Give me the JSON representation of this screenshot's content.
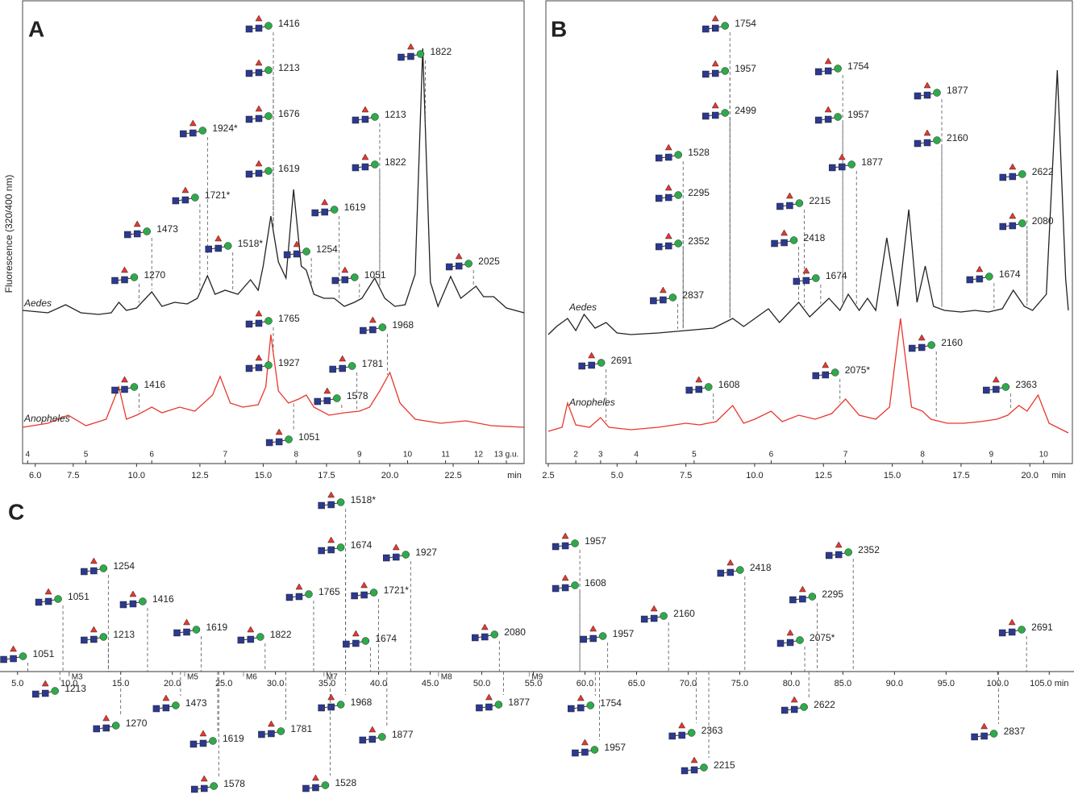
{
  "chart_data": [
    {
      "type": "line",
      "panel": "A",
      "ylabel": "Fluorescence (320/400 nm)",
      "xlabel": "min",
      "xlim": [
        5.5,
        25.3
      ],
      "ylim": [
        0,
        540
      ],
      "xticks": [
        {
          "value": 6,
          "label": "6.0"
        },
        7.5,
        {
          "value": 10,
          "label": "10.0"
        },
        12.5,
        {
          "value": 15,
          "label": "15.0"
        },
        17.5,
        {
          "value": 20,
          "label": "20.0"
        },
        22.5
      ],
      "gu_ticks": [
        {
          "value": 5.7,
          "label": "4"
        },
        {
          "value": 8.0,
          "label": "5"
        },
        {
          "value": 10.6,
          "label": "6"
        },
        {
          "value": 13.5,
          "label": "7"
        },
        {
          "value": 16.3,
          "label": "8"
        },
        {
          "value": 18.8,
          "label": "9"
        },
        {
          "value": 20.7,
          "label": "10"
        },
        {
          "value": 22.2,
          "label": "11"
        },
        {
          "value": 23.5,
          "label": "12"
        },
        {
          "value": 24.6,
          "label": "13 g.u."
        }
      ],
      "series": [
        {
          "name": "Aedes",
          "color": "#222222",
          "x": [
            5.5,
            6.5,
            7.2,
            7.8,
            8.5,
            9.0,
            9.3,
            9.6,
            10.0,
            10.6,
            11.0,
            11.5,
            12.0,
            12.4,
            12.8,
            13.1,
            13.5,
            14.0,
            14.5,
            14.8,
            15.0,
            15.3,
            15.6,
            15.9,
            16.2,
            16.5,
            16.7,
            17.0,
            17.4,
            17.8,
            18.2,
            18.6,
            18.9,
            19.4,
            19.8,
            20.2,
            20.6,
            21.0,
            21.3,
            21.6,
            21.9,
            22.4,
            22.8,
            23.4,
            23.7,
            24.1,
            24.6,
            25.3
          ],
          "values": [
            175,
            172,
            182,
            172,
            170,
            172,
            185,
            175,
            178,
            198,
            180,
            185,
            183,
            190,
            218,
            195,
            200,
            195,
            213,
            200,
            230,
            292,
            235,
            215,
            325,
            230,
            225,
            195,
            190,
            190,
            180,
            185,
            190,
            215,
            190,
            180,
            182,
            220,
            500,
            210,
            180,
            217,
            190,
            205,
            192,
            192,
            178,
            172
          ]
        },
        {
          "name": "Anopheles",
          "color": "#e8372c",
          "x": [
            5.5,
            6.5,
            7.3,
            8.0,
            8.8,
            9.3,
            9.6,
            10.0,
            10.6,
            11.0,
            11.7,
            12.3,
            13.0,
            13.3,
            13.7,
            14.2,
            14.8,
            15.1,
            15.3,
            15.6,
            16.0,
            16.4,
            16.7,
            17.0,
            17.6,
            18.2,
            18.8,
            19.2,
            19.6,
            20.0,
            20.4,
            21.0,
            22.0,
            23.0,
            24.0,
            25.3
          ],
          "values": [
            30,
            35,
            45,
            32,
            40,
            80,
            40,
            45,
            55,
            48,
            55,
            50,
            70,
            93,
            60,
            55,
            58,
            80,
            145,
            75,
            60,
            65,
            70,
            55,
            45,
            48,
            50,
            55,
            75,
            98,
            60,
            40,
            35,
            38,
            32,
            30
          ]
        }
      ],
      "annotations": [
        {
          "text": "1416",
          "x": 15.4
        },
        {
          "text": "1213",
          "x": 15.4
        },
        {
          "text": "1676",
          "x": 15.4
        },
        {
          "text": "1924*",
          "x": 12.8
        },
        {
          "text": "1619",
          "x": 15.4
        },
        {
          "text": "1721*",
          "x": 12.5
        },
        {
          "text": "1473",
          "x": 10.6
        },
        {
          "text": "1518*",
          "x": 13.8
        },
        {
          "text": "1270",
          "x": 10.1
        },
        {
          "text": "1254",
          "x": 16.9
        },
        {
          "text": "1619",
          "x": 18.0
        },
        {
          "text": "1213",
          "x": 19.6
        },
        {
          "text": "1822",
          "x": 19.6
        },
        {
          "text": "1822",
          "x": 21.4
        },
        {
          "text": "1051",
          "x": 18.8
        },
        {
          "text": "2025",
          "x": 23.3
        },
        {
          "text": "1765",
          "x": 15.4
        },
        {
          "text": "1927",
          "x": 15.4
        },
        {
          "text": "1781",
          "x": 18.7
        },
        {
          "text": "1968",
          "x": 19.9
        },
        {
          "text": "1578",
          "x": 18.1
        },
        {
          "text": "1416",
          "x": 10.1
        },
        {
          "text": "1051",
          "x": 16.2
        }
      ]
    },
    {
      "type": "line",
      "panel": "B",
      "xlabel": "min",
      "xlim": [
        2.5,
        21.4
      ],
      "ylim": [
        0,
        545
      ],
      "xticks": [
        2.5,
        {
          "value": 5,
          "label": "5.0"
        },
        7.5,
        {
          "value": 10,
          "label": "10.0"
        },
        12.5,
        {
          "value": 15,
          "label": "15.0"
        },
        17.5,
        {
          "value": 20,
          "label": "20.0"
        }
      ],
      "gu_ticks": [
        {
          "value": 3.5,
          "label": "2"
        },
        {
          "value": 4.4,
          "label": "3"
        },
        {
          "value": 5.7,
          "label": "4"
        },
        {
          "value": 7.8,
          "label": "5"
        },
        {
          "value": 10.6,
          "label": "6"
        },
        {
          "value": 13.3,
          "label": "7"
        },
        {
          "value": 16.1,
          "label": "8"
        },
        {
          "value": 18.6,
          "label": "9"
        },
        {
          "value": 20.5,
          "label": "10"
        }
      ],
      "series": [
        {
          "name": "Aedes",
          "color": "#222222",
          "x": [
            2.5,
            2.8,
            3.2,
            3.5,
            3.8,
            4.2,
            4.6,
            5.0,
            5.5,
            6.5,
            7.5,
            8.5,
            9.2,
            9.6,
            10.5,
            10.9,
            11.6,
            12.0,
            12.7,
            13.1,
            13.4,
            13.8,
            14.1,
            14.4,
            14.8,
            15.2,
            15.6,
            15.9,
            16.2,
            16.5,
            16.9,
            17.5,
            18.0,
            18.5,
            19.0,
            19.4,
            19.8,
            20.1,
            20.6,
            21.0,
            21.3,
            21.4
          ],
          "values": [
            150,
            160,
            170,
            155,
            175,
            158,
            165,
            152,
            150,
            152,
            155,
            158,
            170,
            160,
            182,
            165,
            190,
            172,
            195,
            180,
            200,
            180,
            195,
            180,
            270,
            185,
            305,
            190,
            235,
            185,
            180,
            178,
            180,
            178,
            182,
            205,
            185,
            180,
            200,
            478,
            220,
            180
          ]
        },
        {
          "name": "Anopheles",
          "color": "#e8372c",
          "x": [
            2.5,
            3.0,
            3.2,
            3.5,
            4.0,
            4.4,
            4.7,
            5.5,
            6.5,
            7.5,
            8.0,
            8.6,
            9.2,
            9.6,
            10.0,
            10.6,
            11.0,
            11.6,
            12.2,
            12.8,
            13.3,
            13.8,
            14.4,
            14.9,
            15.3,
            15.7,
            16.1,
            16.4,
            17.0,
            17.6,
            18.2,
            18.8,
            19.2,
            19.6,
            19.9,
            20.3,
            20.7,
            21.4
          ],
          "values": [
            30,
            35,
            65,
            38,
            35,
            47,
            35,
            32,
            35,
            40,
            38,
            42,
            62,
            40,
            45,
            55,
            42,
            50,
            45,
            52,
            70,
            50,
            45,
            60,
            170,
            60,
            55,
            45,
            40,
            40,
            42,
            45,
            50,
            62,
            55,
            75,
            40,
            28
          ]
        }
      ],
      "annotations": [
        {
          "text": "1754",
          "x": 9.1
        },
        {
          "text": "1957",
          "x": 9.1
        },
        {
          "text": "2499",
          "x": 9.1
        },
        {
          "text": "1528",
          "x": 7.4
        },
        {
          "text": "2295",
          "x": 7.4
        },
        {
          "text": "2352",
          "x": 7.4
        },
        {
          "text": "2837",
          "x": 7.2
        },
        {
          "text": "1754",
          "x": 13.2
        },
        {
          "text": "1957",
          "x": 13.2
        },
        {
          "text": "1877",
          "x": 13.7
        },
        {
          "text": "2215",
          "x": 11.8
        },
        {
          "text": "2418",
          "x": 11.6
        },
        {
          "text": "1674",
          "x": 12.4
        },
        {
          "text": "1877",
          "x": 16.8
        },
        {
          "text": "2160",
          "x": 16.8
        },
        {
          "text": "2622",
          "x": 19.9
        },
        {
          "text": "2080",
          "x": 19.9
        },
        {
          "text": "1674",
          "x": 18.7
        },
        {
          "text": "2691",
          "x": 4.6
        },
        {
          "text": "1608",
          "x": 8.5
        },
        {
          "text": "2075*",
          "x": 13.1
        },
        {
          "text": "2160",
          "x": 16.6
        },
        {
          "text": "2363",
          "x": 19.3
        }
      ]
    },
    {
      "type": "timeline",
      "panel": "C",
      "xlim": [
        3.3,
        107.4
      ],
      "xticks": [
        {
          "value": 5,
          "label": "5.0"
        },
        {
          "value": 10,
          "label": "10.0"
        },
        {
          "value": 15,
          "label": "15.0"
        },
        {
          "value": 20,
          "label": "20.0"
        },
        {
          "value": 25,
          "label": "25.0"
        },
        {
          "value": 30,
          "label": "30.0"
        },
        {
          "value": 35,
          "label": "35.0"
        },
        {
          "value": 40,
          "label": "40.0"
        },
        {
          "value": 45,
          "label": "45.0"
        },
        {
          "value": 50,
          "label": "50.0"
        },
        {
          "value": 55,
          "label": "55.0"
        },
        {
          "value": 60,
          "label": "60.0"
        },
        {
          "value": 65,
          "label": "65.0"
        },
        {
          "value": 70,
          "label": "70.0"
        },
        {
          "value": 75,
          "label": "75.0"
        },
        {
          "value": 80,
          "label": "80.0"
        },
        {
          "value": 85,
          "label": "85.0"
        },
        {
          "value": 90,
          "label": "90.0"
        },
        {
          "value": 95,
          "label": "95.0"
        },
        {
          "value": 100,
          "label": "100.0"
        },
        {
          "value": 105,
          "label": "105.0 min"
        }
      ],
      "markers": [
        {
          "value": 10.0,
          "label": "M3"
        },
        {
          "value": 21.2,
          "label": "M5"
        },
        {
          "value": 26.9,
          "label": "M6"
        },
        {
          "value": 34.7,
          "label": "M7"
        },
        {
          "value": 45.8,
          "label": "M8"
        },
        {
          "value": 54.6,
          "label": "M9"
        }
      ],
      "annotations": [
        {
          "text": "1051",
          "x": 6.0
        },
        {
          "text": "1051",
          "x": 9.4
        },
        {
          "text": "1254",
          "x": 13.8
        },
        {
          "text": "1213",
          "x": 13.8
        },
        {
          "text": "1416",
          "x": 17.6
        },
        {
          "text": "1619",
          "x": 22.8
        },
        {
          "text": "1822",
          "x": 29.0
        },
        {
          "text": "1765",
          "x": 33.7
        },
        {
          "text": "1518*",
          "x": 36.8
        },
        {
          "text": "1674",
          "x": 36.8
        },
        {
          "text": "1721*",
          "x": 40.0
        },
        {
          "text": "1927",
          "x": 43.1
        },
        {
          "text": "1674",
          "x": 39.2
        },
        {
          "text": "2080",
          "x": 51.7
        },
        {
          "text": "1957",
          "x": 59.5
        },
        {
          "text": "1608",
          "x": 59.5
        },
        {
          "text": "2160",
          "x": 68.1
        },
        {
          "text": "1957",
          "x": 62.2
        },
        {
          "text": "2418",
          "x": 75.5
        },
        {
          "text": "2352",
          "x": 86.0
        },
        {
          "text": "2295",
          "x": 82.5
        },
        {
          "text": "2075*",
          "x": 81.3
        },
        {
          "text": "2691",
          "x": 102.8
        },
        {
          "text": "1213",
          "x": 9.1
        },
        {
          "text": "1270",
          "x": 15.0
        },
        {
          "text": "1473",
          "x": 20.8
        },
        {
          "text": "1619",
          "x": 24.4
        },
        {
          "text": "1578",
          "x": 24.5
        },
        {
          "text": "1781",
          "x": 31.0
        },
        {
          "text": "1968",
          "x": 36.8
        },
        {
          "text": "1877",
          "x": 40.8
        },
        {
          "text": "1528",
          "x": 35.3
        },
        {
          "text": "1877",
          "x": 52.1
        },
        {
          "text": "1754",
          "x": 61.0
        },
        {
          "text": "1957",
          "x": 61.4
        },
        {
          "text": "2363",
          "x": 70.8
        },
        {
          "text": "2215",
          "x": 72.0
        },
        {
          "text": "2622",
          "x": 81.7
        },
        {
          "text": "2837",
          "x": 100.1
        }
      ]
    }
  ]
}
